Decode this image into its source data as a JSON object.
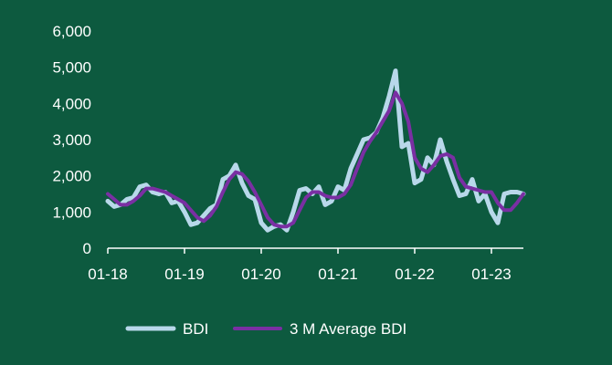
{
  "chart_data": {
    "type": "line",
    "title": "",
    "xlabel": "",
    "ylabel": "",
    "ylim": [
      0,
      6000
    ],
    "y_ticks": [
      0,
      1000,
      2000,
      3000,
      4000,
      5000,
      6000
    ],
    "y_tick_labels": [
      "0",
      "1,000",
      "2,000",
      "3,000",
      "4,000",
      "5,000",
      "6,000"
    ],
    "x_range": [
      "2018-01",
      "2023-06"
    ],
    "x_ticks": [
      "2018-01",
      "2019-01",
      "2020-01",
      "2021-01",
      "2022-01",
      "2023-01"
    ],
    "x_tick_labels": [
      "01-18",
      "01-19",
      "01-20",
      "01-21",
      "01-22",
      "01-23"
    ],
    "grid": false,
    "legend_position": "bottom",
    "x": [
      "2018-01",
      "2018-02",
      "2018-03",
      "2018-04",
      "2018-05",
      "2018-06",
      "2018-07",
      "2018-08",
      "2018-09",
      "2018-10",
      "2018-11",
      "2018-12",
      "2019-01",
      "2019-02",
      "2019-03",
      "2019-04",
      "2019-05",
      "2019-06",
      "2019-07",
      "2019-08",
      "2019-09",
      "2019-10",
      "2019-11",
      "2019-12",
      "2020-01",
      "2020-02",
      "2020-03",
      "2020-04",
      "2020-05",
      "2020-06",
      "2020-07",
      "2020-08",
      "2020-09",
      "2020-10",
      "2020-11",
      "2020-12",
      "2021-01",
      "2021-02",
      "2021-03",
      "2021-04",
      "2021-05",
      "2021-06",
      "2021-07",
      "2021-08",
      "2021-09",
      "2021-10",
      "2021-11",
      "2021-12",
      "2022-01",
      "2022-02",
      "2022-03",
      "2022-04",
      "2022-05",
      "2022-06",
      "2022-07",
      "2022-08",
      "2022-09",
      "2022-10",
      "2022-11",
      "2022-12",
      "2023-01",
      "2023-02",
      "2023-03",
      "2023-04",
      "2023-05",
      "2023-06"
    ],
    "series": [
      {
        "name": "BDI",
        "color": "#b8d8ea",
        "values": [
          1300,
          1150,
          1200,
          1350,
          1400,
          1700,
          1750,
          1550,
          1500,
          1550,
          1250,
          1300,
          1000,
          650,
          700,
          900,
          1100,
          1200,
          1900,
          2000,
          2300,
          1800,
          1450,
          1350,
          700,
          500,
          600,
          650,
          500,
          1000,
          1600,
          1650,
          1500,
          1700,
          1200,
          1300,
          1700,
          1600,
          2200,
          2600,
          3000,
          3050,
          3200,
          3600,
          4200,
          4900,
          2800,
          2900,
          1800,
          1900,
          2500,
          2300,
          3000,
          2400,
          1900,
          1450,
          1500,
          1900,
          1300,
          1500,
          1000,
          700,
          1500,
          1550,
          1550,
          1500
        ]
      },
      {
        "name": "3 M Average BDI",
        "color": "#7a2fa3",
        "values": [
          1500,
          1350,
          1200,
          1200,
          1300,
          1450,
          1650,
          1650,
          1600,
          1550,
          1450,
          1350,
          1250,
          1050,
          850,
          750,
          900,
          1150,
          1550,
          1900,
          2100,
          2050,
          1850,
          1550,
          1200,
          850,
          650,
          600,
          600,
          700,
          1050,
          1400,
          1550,
          1550,
          1450,
          1400,
          1400,
          1500,
          1750,
          2200,
          2650,
          2950,
          3200,
          3500,
          3800,
          4300,
          4000,
          3500,
          2500,
          2200,
          2100,
          2300,
          2550,
          2600,
          2500,
          1950,
          1700,
          1650,
          1600,
          1550,
          1550,
          1250,
          1050,
          1050,
          1250,
          1500
        ]
      }
    ]
  }
}
